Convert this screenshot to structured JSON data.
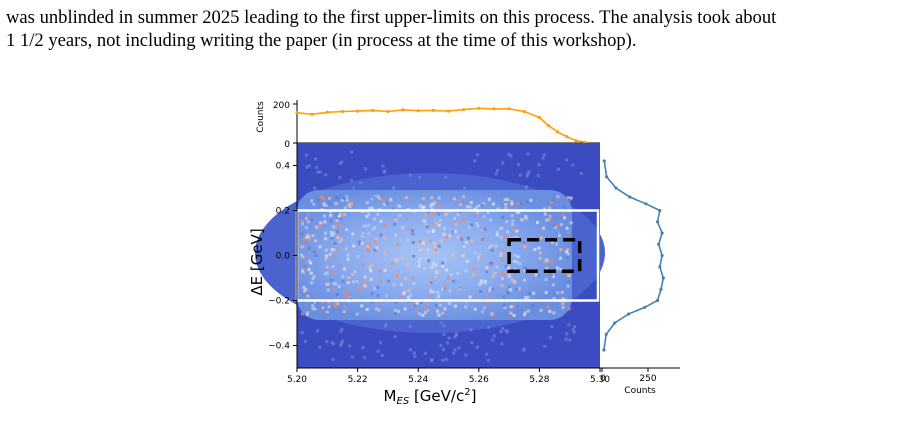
{
  "paragraph": {
    "line1": "was unblinded in summer 2025 leading to the first upper-limits on this process. The analysis took about",
    "line2": "1 1/2 years, not including writing the paper (in process at the time of this workshop)."
  },
  "chart_data": {
    "type": "heatmap",
    "title": "",
    "xlabel": "M_ES [GeV/c^2]",
    "ylabel": "ΔE [GeV]",
    "xlim": [
      5.2,
      5.3
    ],
    "ylim": [
      -0.5,
      0.5
    ],
    "x_ticks": [
      "5.20",
      "5.22",
      "5.24",
      "5.26",
      "5.28",
      "5.30"
    ],
    "y_ticks": [
      "0.4",
      "0.2",
      "0.0",
      "−0.2",
      "−0.4"
    ],
    "signal_band": {
      "de_min": -0.2,
      "de_max": 0.2,
      "mes_min": 5.2,
      "mes_max": 5.3
    },
    "signal_box": {
      "de_min": -0.07,
      "de_max": 0.07,
      "mes_min": 5.27,
      "mes_max": 5.29
    },
    "top_projection": {
      "ylabel": "Counts",
      "y_ticks": [
        "200",
        "0"
      ],
      "ylim": [
        0,
        270
      ],
      "color": "#ff9f0a",
      "x": [
        5.2,
        5.205,
        5.21,
        5.215,
        5.22,
        5.225,
        5.23,
        5.235,
        5.24,
        5.245,
        5.25,
        5.255,
        5.26,
        5.265,
        5.27,
        5.275,
        5.28,
        5.283,
        5.286,
        5.289,
        5.292,
        5.295
      ],
      "values": [
        190,
        180,
        193,
        198,
        200,
        205,
        198,
        208,
        203,
        205,
        200,
        210,
        218,
        214,
        215,
        198,
        160,
        110,
        70,
        40,
        15,
        5
      ]
    },
    "right_projection": {
      "xlabel": "Counts",
      "x_ticks": [
        "0",
        "250"
      ],
      "xlim": [
        0,
        320
      ],
      "color": "#4682b4",
      "de": [
        0.42,
        0.35,
        0.3,
        0.26,
        0.23,
        0.2,
        0.15,
        0.1,
        0.05,
        0.0,
        -0.05,
        -0.1,
        -0.15,
        -0.2,
        -0.23,
        -0.26,
        -0.3,
        -0.35,
        -0.42
      ],
      "values": [
        10,
        20,
        60,
        120,
        190,
        250,
        240,
        260,
        245,
        260,
        250,
        265,
        255,
        240,
        185,
        115,
        55,
        18,
        8
      ]
    },
    "colors": {
      "background": "#3b4cc0",
      "band_line": "#ffffff",
      "box_line": "#000000"
    }
  }
}
